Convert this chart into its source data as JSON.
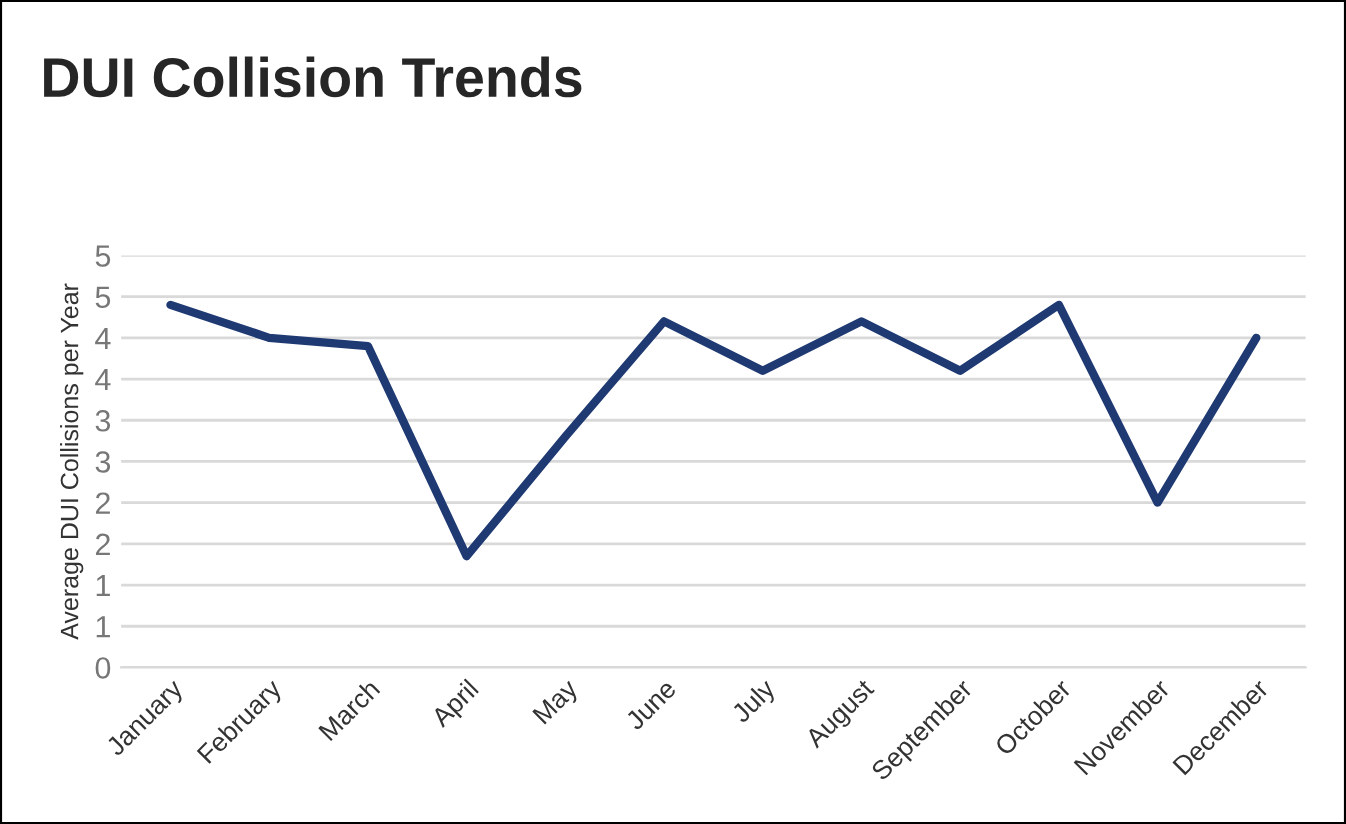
{
  "chart_data": {
    "type": "line",
    "title": "DUI Collision Trends",
    "ylabel": "Average DUI Collisions per Year",
    "categories": [
      "January",
      "February",
      "March",
      "April",
      "May",
      "June",
      "July",
      "August",
      "September",
      "October",
      "November",
      "December"
    ],
    "series": [
      {
        "color": "#1f3a73",
        "values": [
          4.4,
          4.0,
          3.9,
          1.35,
          2.8,
          4.2,
          3.6,
          4.2,
          3.6,
          4.4,
          2.0,
          4.0
        ]
      }
    ],
    "ylim": [
      0,
      5
    ],
    "yticks": [
      0,
      {
        "value": 0.5,
        "label": "1"
      },
      1,
      {
        "value": 1.5,
        "label": "2"
      },
      2,
      {
        "value": 2.5,
        "label": "3"
      },
      3,
      {
        "value": 3.5,
        "label": "4"
      },
      4,
      {
        "value": 4.5,
        "label": "5"
      },
      5
    ],
    "grid": "y",
    "legend": false,
    "marker": "none",
    "line_style": "solid"
  }
}
